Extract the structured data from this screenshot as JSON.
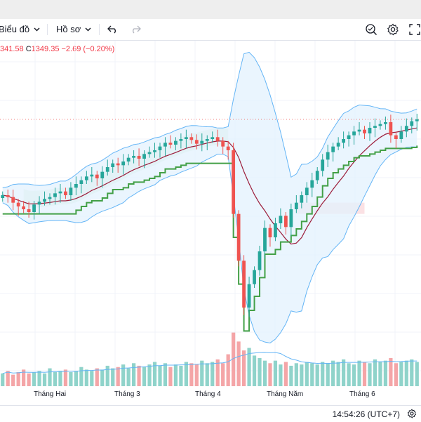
{
  "toolbar": {
    "chart_type_label": "Biểu đồ",
    "profile_label": "Hồ sơ"
  },
  "ohlc": {
    "low_fragment": "341.58",
    "close_key": "C",
    "close_value": "1349.35",
    "change": "−2.69 (−0.20%)"
  },
  "xaxis": {
    "labels": [
      "Tháng Hai",
      "Tháng 3",
      "Tháng 4",
      "Tháng Năm",
      "Tháng 6"
    ]
  },
  "status": {
    "time": "14:54:26 (UTC+7)"
  },
  "icons": {
    "undo": "undo-icon",
    "redo": "redo-icon",
    "compare": "compare-icon",
    "settings": "gear-icon",
    "fullscreen": "fullscreen-icon"
  },
  "colors": {
    "up": "#26a69a",
    "down": "#ef5350",
    "volume_up": "#8fd3ca",
    "volume_down": "#f4a5a7",
    "bollinger": "#64b5f6",
    "bollinger_fill": "#e3f2fd",
    "basis": "#9c1c3a",
    "trail": "#43a047",
    "cloud_green": "#d4ecd9",
    "cloud_red": "#fadadd",
    "accent_text": "#f23645"
  },
  "chart_data": {
    "type": "candlestick",
    "series": [
      {
        "name": "price",
        "values": [
          1270,
          1268,
          1262,
          1258,
          1255,
          1252,
          1260,
          1263,
          1266,
          1268,
          1272,
          1274,
          1270,
          1278,
          1282,
          1286,
          1290,
          1292,
          1288,
          1295,
          1300,
          1304,
          1302,
          1306,
          1310,
          1312,
          1309,
          1314,
          1316,
          1318,
          1322,
          1326,
          1324,
          1328,
          1330,
          1332,
          1329,
          1325,
          1328,
          1330,
          1332,
          1328,
          1322,
          1318,
          1250,
          1200,
          1150,
          1175,
          1190,
          1210,
          1235,
          1225,
          1240,
          1248,
          1236,
          1255,
          1262,
          1270,
          1278,
          1286,
          1296,
          1308,
          1316,
          1322,
          1326,
          1330,
          1334,
          1338,
          1340,
          1336,
          1342,
          1344,
          1346,
          1348,
          1334,
          1330,
          1338,
          1344,
          1349,
          1351
        ]
      },
      {
        "name": "volume",
        "values": [
          1.0,
          1.2,
          0.9,
          1.1,
          1.3,
          1.0,
          1.1,
          1.2,
          1.0,
          1.4,
          1.1,
          1.2,
          1.3,
          1.1,
          1.2,
          1.5,
          1.3,
          1.2,
          1.4,
          1.3,
          1.6,
          1.4,
          1.5,
          1.7,
          1.4,
          1.8,
          1.6,
          1.5,
          1.7,
          1.9,
          1.6,
          1.8,
          1.5,
          1.7,
          1.6,
          1.9,
          1.8,
          1.7,
          2.0,
          1.8,
          1.9,
          2.1,
          1.8,
          2.5,
          4.2,
          3.5,
          2.8,
          3.0,
          2.4,
          2.2,
          2.0,
          1.8,
          2.0,
          1.7,
          1.9,
          1.6,
          1.8,
          1.7,
          1.9,
          1.8,
          1.7,
          1.9,
          1.8,
          2.0,
          1.9,
          2.1,
          1.8,
          1.7,
          2.0,
          1.9,
          1.8,
          2.1,
          1.9,
          2.0,
          2.2,
          1.8,
          1.9,
          2.0,
          2.1,
          1.9
        ]
      }
    ],
    "xlabel": "",
    "ylabel": ""
  }
}
